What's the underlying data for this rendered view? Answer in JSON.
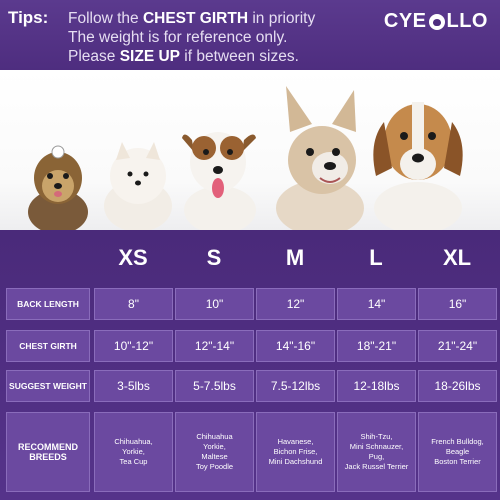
{
  "tips": {
    "label": "Tips:",
    "line1_pre": "Follow the ",
    "line1_bold": "CHEST GIRTH",
    "line1_post": " in priority",
    "line2": "The weight is for reference only.",
    "line3_pre": "Please ",
    "line3_bold": "SIZE UP",
    "line3_post": " if between sizes."
  },
  "brand": {
    "left": "CYE",
    "right": "LLO"
  },
  "sizes": [
    "XS",
    "S",
    "M",
    "L",
    "XL"
  ],
  "rows": [
    {
      "label": "BACK LENGTH",
      "values": [
        "8\"",
        "10\"",
        "12\"",
        "14\"",
        "16\""
      ]
    },
    {
      "label": "CHEST GIRTH",
      "values": [
        "10\"-12\"",
        "12\"-14\"",
        "14\"-16\"",
        "18\"-21\"",
        "21\"-24\""
      ]
    },
    {
      "label": "SUGGEST WEIGHT",
      "values": [
        "3-5lbs",
        "5-7.5lbs",
        "7.5-12lbs",
        "12-18lbs",
        "18-26lbs"
      ]
    },
    {
      "label": "RECOMMEND BREEDS",
      "values": [
        "Chihuahua,\nYorkie,\nTea Cup",
        "Chihuahua\nYorkie,\nMaltese\nToy Poodle",
        "Havanese,\nBichon Frise,\nMini Dachshund",
        "Shih-Tzu,\nMini Schnauzer,\nPug,\nJack Russel Terrier",
        "French Bulldog,\nBeagle\nBoston Terrier"
      ]
    }
  ],
  "colors": {
    "brand_purple": "#4e2d7f",
    "cell_purple": "#6b49a0"
  }
}
